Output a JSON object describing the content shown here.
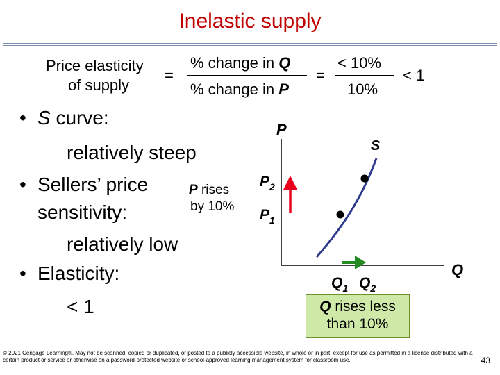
{
  "title": "Inelastic supply",
  "formula": {
    "left_line1": "Price elasticity",
    "left_line2": "of supply",
    "equals1": "=",
    "numerator_prefix": "% change in ",
    "numerator_var": "Q",
    "denominator_prefix": "% change in ",
    "denominator_var": "P",
    "equals2": "=",
    "value_numerator": "< 10%",
    "value_denominator": "10%",
    "result": "< 1"
  },
  "bullets": {
    "b1_marker": "•",
    "b1_var": "S",
    "b1_text": " curve:",
    "b1_sub": "relatively steep",
    "b2_marker": "•",
    "b2_line1": "Sellers’ price",
    "b2_line2": "sensitivity:",
    "b2_sub": "relatively low",
    "b3_marker": "•",
    "b3_text": "Elasticity:",
    "b3_sub": "< 1"
  },
  "graph": {
    "y_axis_label": "P",
    "x_axis_label": "Q",
    "curve_label": "S",
    "p2_label": "P",
    "p2_sub": "2",
    "p1_label": "P",
    "p1_sub": "1",
    "q1_label": "Q",
    "q1_sub": "1",
    "q2_label": "Q",
    "q2_sub": "2",
    "price_note_var": "P",
    "price_note_line1": " rises",
    "price_note_line2": "by 10%",
    "qty_note_var": "Q",
    "qty_note_line1": " rises less",
    "qty_note_line2": "than 10%",
    "colors": {
      "curve": "#2e3a8c",
      "price_arrow": "#e8001c",
      "qty_arrow": "#228b22",
      "note_fill": "#cfe9a8"
    }
  },
  "footer": "© 2021 Cengage Learning®. May not be scanned, copied or duplicated, or posted to a publicly accessible website, in whole or in part, except for use as permitted in a license distributed with a certain product or service or otherwise on a password-protected website or school-approved learning management system for classroom use.",
  "page_number": "43"
}
